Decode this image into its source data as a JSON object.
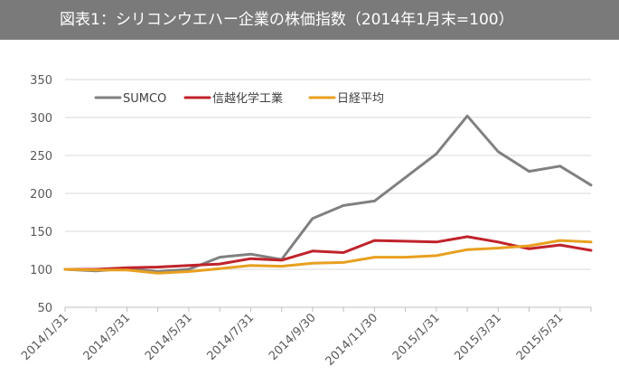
{
  "title": "図表1：シリコンウエハー企業の株価指数（2014年1月末=100）",
  "chart_data": {
    "type": "line",
    "title": "図表1：シリコンウエハー企業の株価指数（2014年1月末=100）",
    "xlabel": "",
    "ylabel": "",
    "ylim": [
      50,
      350
    ],
    "yticks": [
      50,
      100,
      150,
      200,
      250,
      300,
      350
    ],
    "grid": "horizontal",
    "legend_position": "top-left",
    "x": [
      "2014/1/31",
      "2014/2/28",
      "2014/3/31",
      "2014/4/30",
      "2014/5/31",
      "2014/6/30",
      "2014/7/31",
      "2014/8/31",
      "2014/9/30",
      "2014/10/31",
      "2014/11/30",
      "2014/12/31",
      "2015/1/31",
      "2015/2/28",
      "2015/3/31",
      "2015/4/30",
      "2015/5/31",
      "2015/6/30"
    ],
    "x_tick_labels": [
      "2014/1/31",
      "2014/3/31",
      "2014/5/31",
      "2014/7/31",
      "2014/9/30",
      "2014/11/30",
      "2015/1/31",
      "2015/3/31",
      "2015/5/31"
    ],
    "series": [
      {
        "name": "SUMCO",
        "color": "#808080",
        "values": [
          100,
          98,
          101,
          97,
          100,
          116,
          120,
          113,
          167,
          184,
          190,
          221,
          252,
          302,
          255,
          229,
          236,
          211
        ]
      },
      {
        "name": "信越化学工業",
        "color": "#c0232b",
        "values": [
          100,
          100,
          102,
          103,
          105,
          107,
          114,
          112,
          124,
          122,
          138,
          137,
          136,
          143,
          136,
          127,
          132,
          125
        ]
      },
      {
        "name": "日経平均",
        "color": "#e8a020",
        "values": [
          100,
          99,
          99,
          95,
          97,
          101,
          105,
          104,
          108,
          109,
          116,
          116,
          118,
          126,
          128,
          131,
          138,
          136
        ]
      }
    ]
  }
}
